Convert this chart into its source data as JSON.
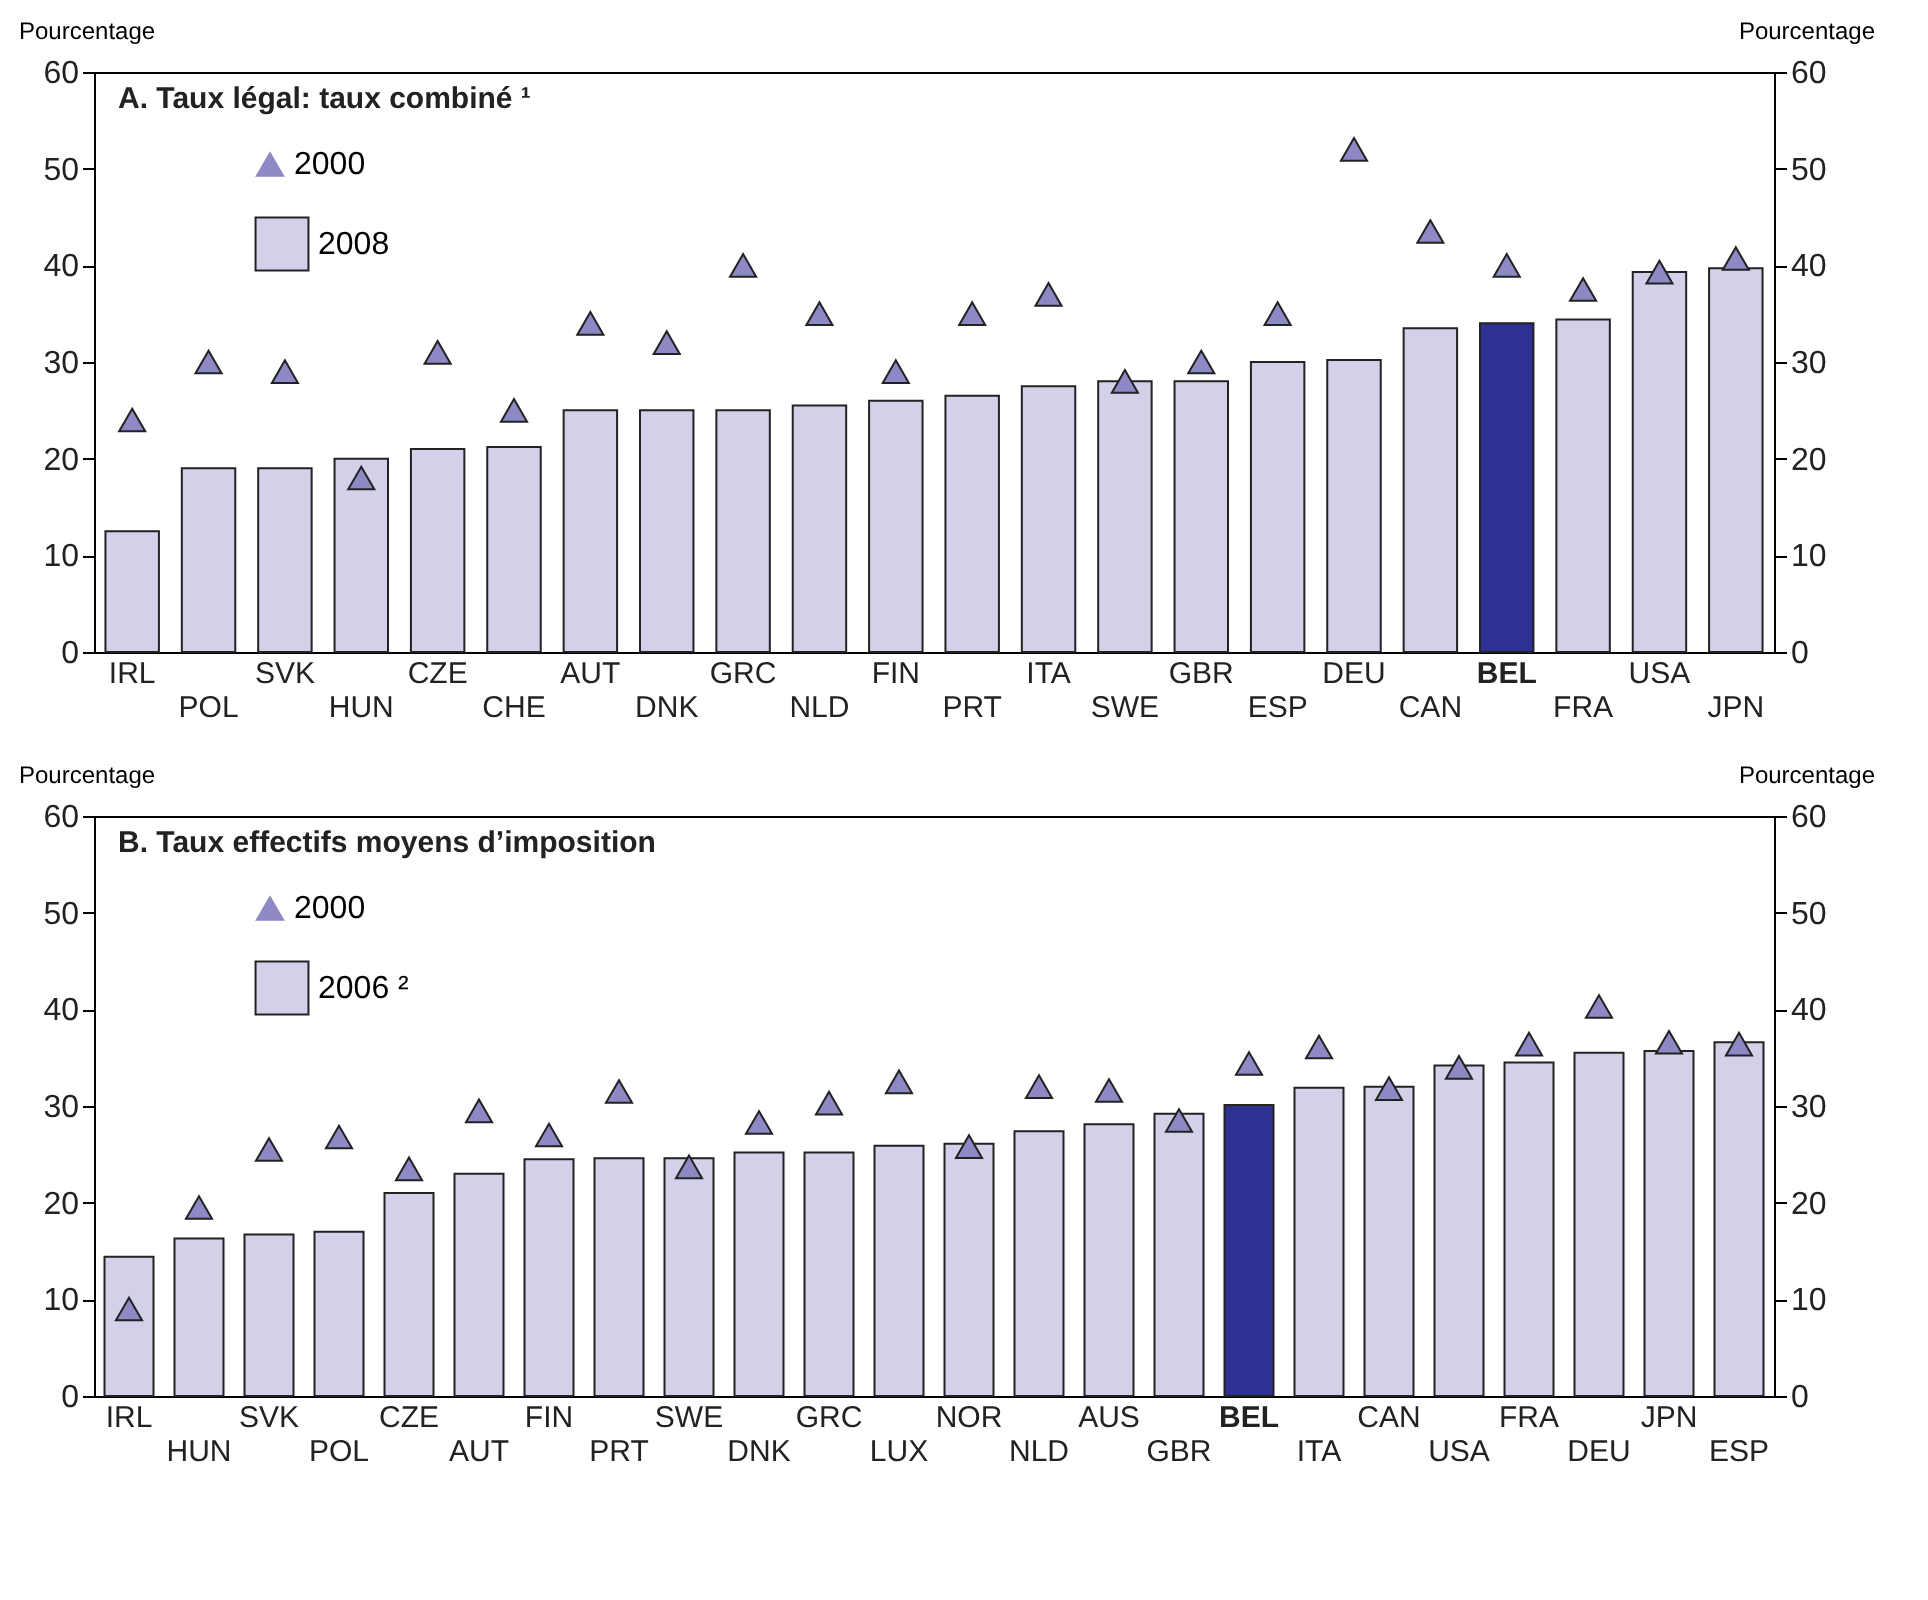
{
  "chart_data": [
    {
      "type": "bar",
      "title": "A. Taux légal: taux combiné ¹",
      "ylabel": "Pourcentage",
      "y2label": "Pourcentage",
      "categories": [
        "IRL",
        "POL",
        "SVK",
        "HUN",
        "CZE",
        "CHE",
        "AUT",
        "DNK",
        "GRC",
        "NLD",
        "FIN",
        "PRT",
        "ITA",
        "SWE",
        "GBR",
        "ESP",
        "DEU",
        "CAN",
        "BEL",
        "FRA",
        "USA",
        "JPN"
      ],
      "ylim": [
        0,
        60
      ],
      "yticks": [
        0,
        10,
        20,
        30,
        40,
        50,
        60
      ],
      "y2lim": [
        0,
        60
      ],
      "y2ticks": [
        0,
        10,
        20,
        30,
        40,
        50,
        60
      ],
      "legend": "top left",
      "marker": "triangle",
      "series": [
        {
          "name": "2000",
          "type": "scatter",
          "color": "#8c89c4",
          "values": [
            24,
            30,
            29,
            18,
            31,
            25,
            34,
            32,
            40,
            35,
            29,
            35,
            37,
            28,
            30,
            35,
            52,
            43.5,
            40,
            37.5,
            39.3,
            40.7
          ]
        },
        {
          "name": "2008",
          "color": "#d3d1ea",
          "colors": [
            "#d3d1ea",
            "#d3d1ea",
            "#d3d1ea",
            "#d3d1ea",
            "#d3d1ea",
            "#d3d1ea",
            "#d3d1ea",
            "#d3d1ea",
            "#d3d1ea",
            "#d3d1ea",
            "#d3d1ea",
            "#d3d1ea",
            "#d3d1ea",
            "#d3d1ea",
            "#d3d1ea",
            "#d3d1ea",
            "#d3d1ea",
            "#d3d1ea",
            "#2e3192",
            "#d3d1ea",
            "#d3d1ea",
            "#d3d1ea"
          ],
          "values": [
            12.5,
            19,
            19,
            20,
            21,
            21.2,
            25,
            25,
            25,
            25.5,
            26,
            26.5,
            27.5,
            28,
            28,
            30,
            30.2,
            33.5,
            34,
            34.4,
            39.3,
            39.7
          ]
        }
      ]
    },
    {
      "type": "bar",
      "title": "B. Taux effectifs moyens d’imposition",
      "ylabel": "Pourcentage",
      "y2label": "Pourcentage",
      "categories": [
        "IRL",
        "HUN",
        "SVK",
        "POL",
        "CZE",
        "AUT",
        "FIN",
        "PRT",
        "SWE",
        "DNK",
        "GRC",
        "LUX",
        "NOR",
        "NLD",
        "AUS",
        "GBR",
        "BEL",
        "ITA",
        "CAN",
        "USA",
        "FRA",
        "DEU",
        "JPN",
        "ESP"
      ],
      "ylim": [
        0,
        60
      ],
      "yticks": [
        0,
        10,
        20,
        30,
        40,
        50,
        60
      ],
      "y2lim": [
        0,
        60
      ],
      "y2ticks": [
        0,
        10,
        20,
        30,
        40,
        50,
        60
      ],
      "legend": "top left",
      "marker": "triangle",
      "series": [
        {
          "name": "2000",
          "type": "scatter",
          "color": "#8c89c4",
          "values": [
            9,
            19.5,
            25.5,
            26.8,
            23.5,
            29.5,
            27,
            31.5,
            23.7,
            28.3,
            30.3,
            32.5,
            25.8,
            32,
            31.6,
            28.5,
            34.4,
            36.1,
            31.8,
            34,
            36.4,
            40.3,
            36.6,
            36.4
          ]
        },
        {
          "name": "2006 ²",
          "color": "#d3d1ea",
          "colors": [
            "#d3d1ea",
            "#d3d1ea",
            "#d3d1ea",
            "#d3d1ea",
            "#d3d1ea",
            "#d3d1ea",
            "#d3d1ea",
            "#d3d1ea",
            "#d3d1ea",
            "#d3d1ea",
            "#d3d1ea",
            "#d3d1ea",
            "#d3d1ea",
            "#d3d1ea",
            "#d3d1ea",
            "#d3d1ea",
            "#2e3192",
            "#d3d1ea",
            "#d3d1ea",
            "#d3d1ea",
            "#d3d1ea",
            "#d3d1ea",
            "#d3d1ea",
            "#d3d1ea"
          ],
          "values": [
            14.4,
            16.3,
            16.7,
            17,
            21,
            23,
            24.5,
            24.6,
            24.6,
            25.2,
            25.2,
            25.9,
            26.1,
            27.4,
            28.1,
            29.2,
            30.1,
            31.9,
            32,
            34.2,
            34.5,
            35.5,
            35.7,
            36.6
          ]
        }
      ]
    }
  ]
}
